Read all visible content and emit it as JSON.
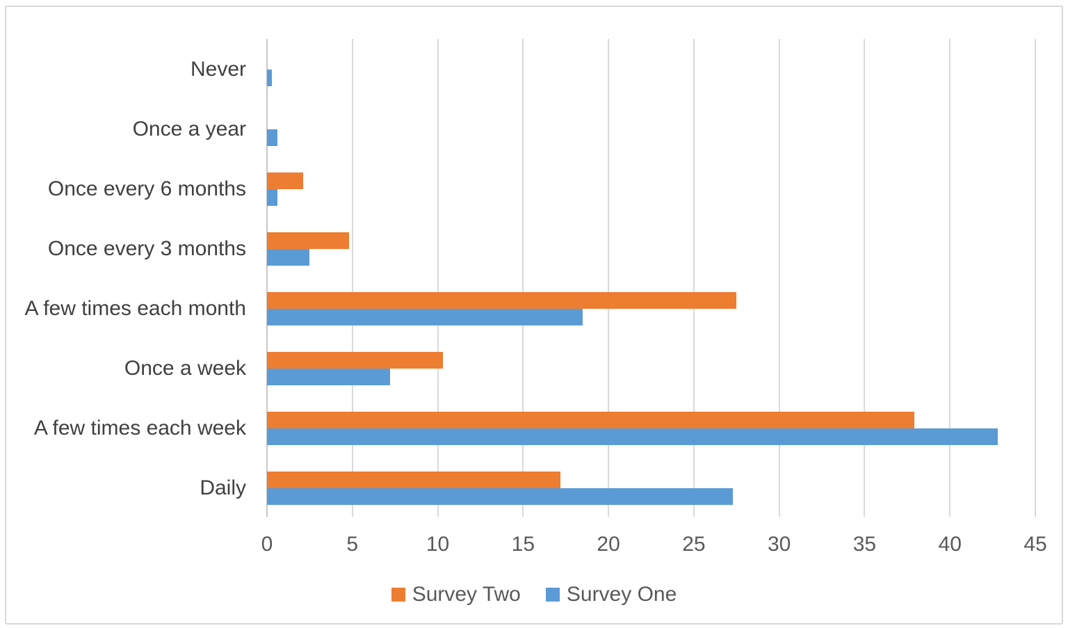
{
  "chart_data": {
    "type": "bar",
    "orientation": "horizontal",
    "title": "",
    "categories": [
      "Never",
      "Once a year",
      "Once every 6 months",
      "Once every 3 months",
      "A few times each month",
      "Once a week",
      "A few times each week",
      "Daily"
    ],
    "series": [
      {
        "name": "Survey Two",
        "color": "#ED7D31",
        "values": [
          0,
          0,
          2.1,
          4.8,
          27.5,
          10.3,
          37.9,
          17.2
        ]
      },
      {
        "name": "Survey One",
        "color": "#5B9BD5",
        "values": [
          0.3,
          0.6,
          0.6,
          2.5,
          18.5,
          7.2,
          42.8,
          27.3
        ]
      }
    ],
    "xlim": [
      0,
      45
    ],
    "x_ticks": [
      0,
      5,
      10,
      15,
      20,
      25,
      30,
      35,
      40,
      45
    ],
    "grid": "vertical-only",
    "legend_position": "bottom-center",
    "legend_order": [
      "Survey Two",
      "Survey One"
    ]
  },
  "colors": {
    "survey_two": "#ED7D31",
    "survey_one": "#5B9BD5",
    "gridline": "#D9D9D9",
    "axis_line": "#C6C6C6",
    "category_text": "#404040",
    "tick_text": "#595959",
    "frame_border": "#D9D9D9",
    "background": "#FFFFFF"
  }
}
